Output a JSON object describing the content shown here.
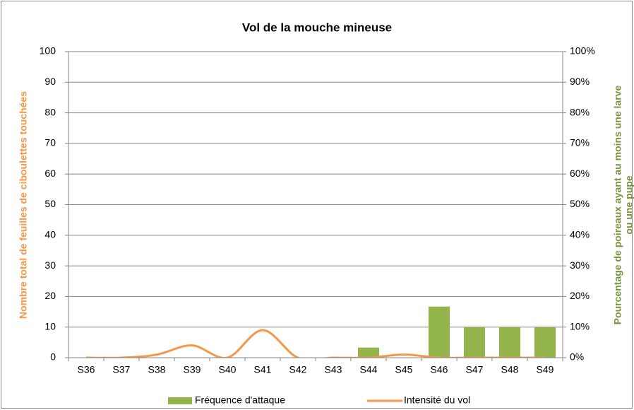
{
  "chart_data": {
    "type": "bar-line",
    "title": "Vol de la mouche mineuse",
    "y_label": "Nombre total de feuilles de ciboulettes touchées",
    "y2_label": [
      "Pourcentage de poireaux ayant au moins une larve",
      "ou une pupe"
    ],
    "categories": [
      "S36",
      "S37",
      "S38",
      "S39",
      "S40",
      "S41",
      "S42",
      "S43",
      "S44",
      "S45",
      "S46",
      "S47",
      "S48",
      "S49"
    ],
    "series": [
      {
        "name": "Fréquence d'attaque",
        "type": "bar",
        "axis": "y2",
        "color": "#92b44a",
        "values": [
          0,
          0,
          0,
          0,
          0,
          0,
          0,
          0,
          3.3,
          0,
          16.7,
          10,
          10,
          10
        ]
      },
      {
        "name": "Intensité du vol",
        "type": "line",
        "smooth": true,
        "color": "#f79646",
        "values": [
          0,
          0,
          1,
          4,
          0,
          9,
          0,
          0,
          0,
          1,
          0,
          0,
          0,
          0
        ]
      }
    ],
    "ylim": [
      0,
      100
    ],
    "yticks": [
      0,
      10,
      20,
      30,
      40,
      50,
      60,
      70,
      80,
      90,
      100
    ],
    "y2lim": [
      0,
      100
    ],
    "y2ticks": [
      {
        "value": 0,
        "label": "0%"
      },
      {
        "value": 10,
        "label": "10%"
      },
      {
        "value": 20,
        "label": "20%"
      },
      {
        "value": 30,
        "label": "30%"
      },
      {
        "value": 40,
        "label": "40%"
      },
      {
        "value": 50,
        "label": "50%"
      },
      {
        "value": 60,
        "label": "60%"
      },
      {
        "value": 70,
        "label": "70%"
      },
      {
        "value": 80,
        "label": "80%"
      },
      {
        "value": 90,
        "label": "90%"
      },
      {
        "value": 100,
        "label": "100%"
      }
    ],
    "grid": true,
    "legend": "bottom"
  }
}
